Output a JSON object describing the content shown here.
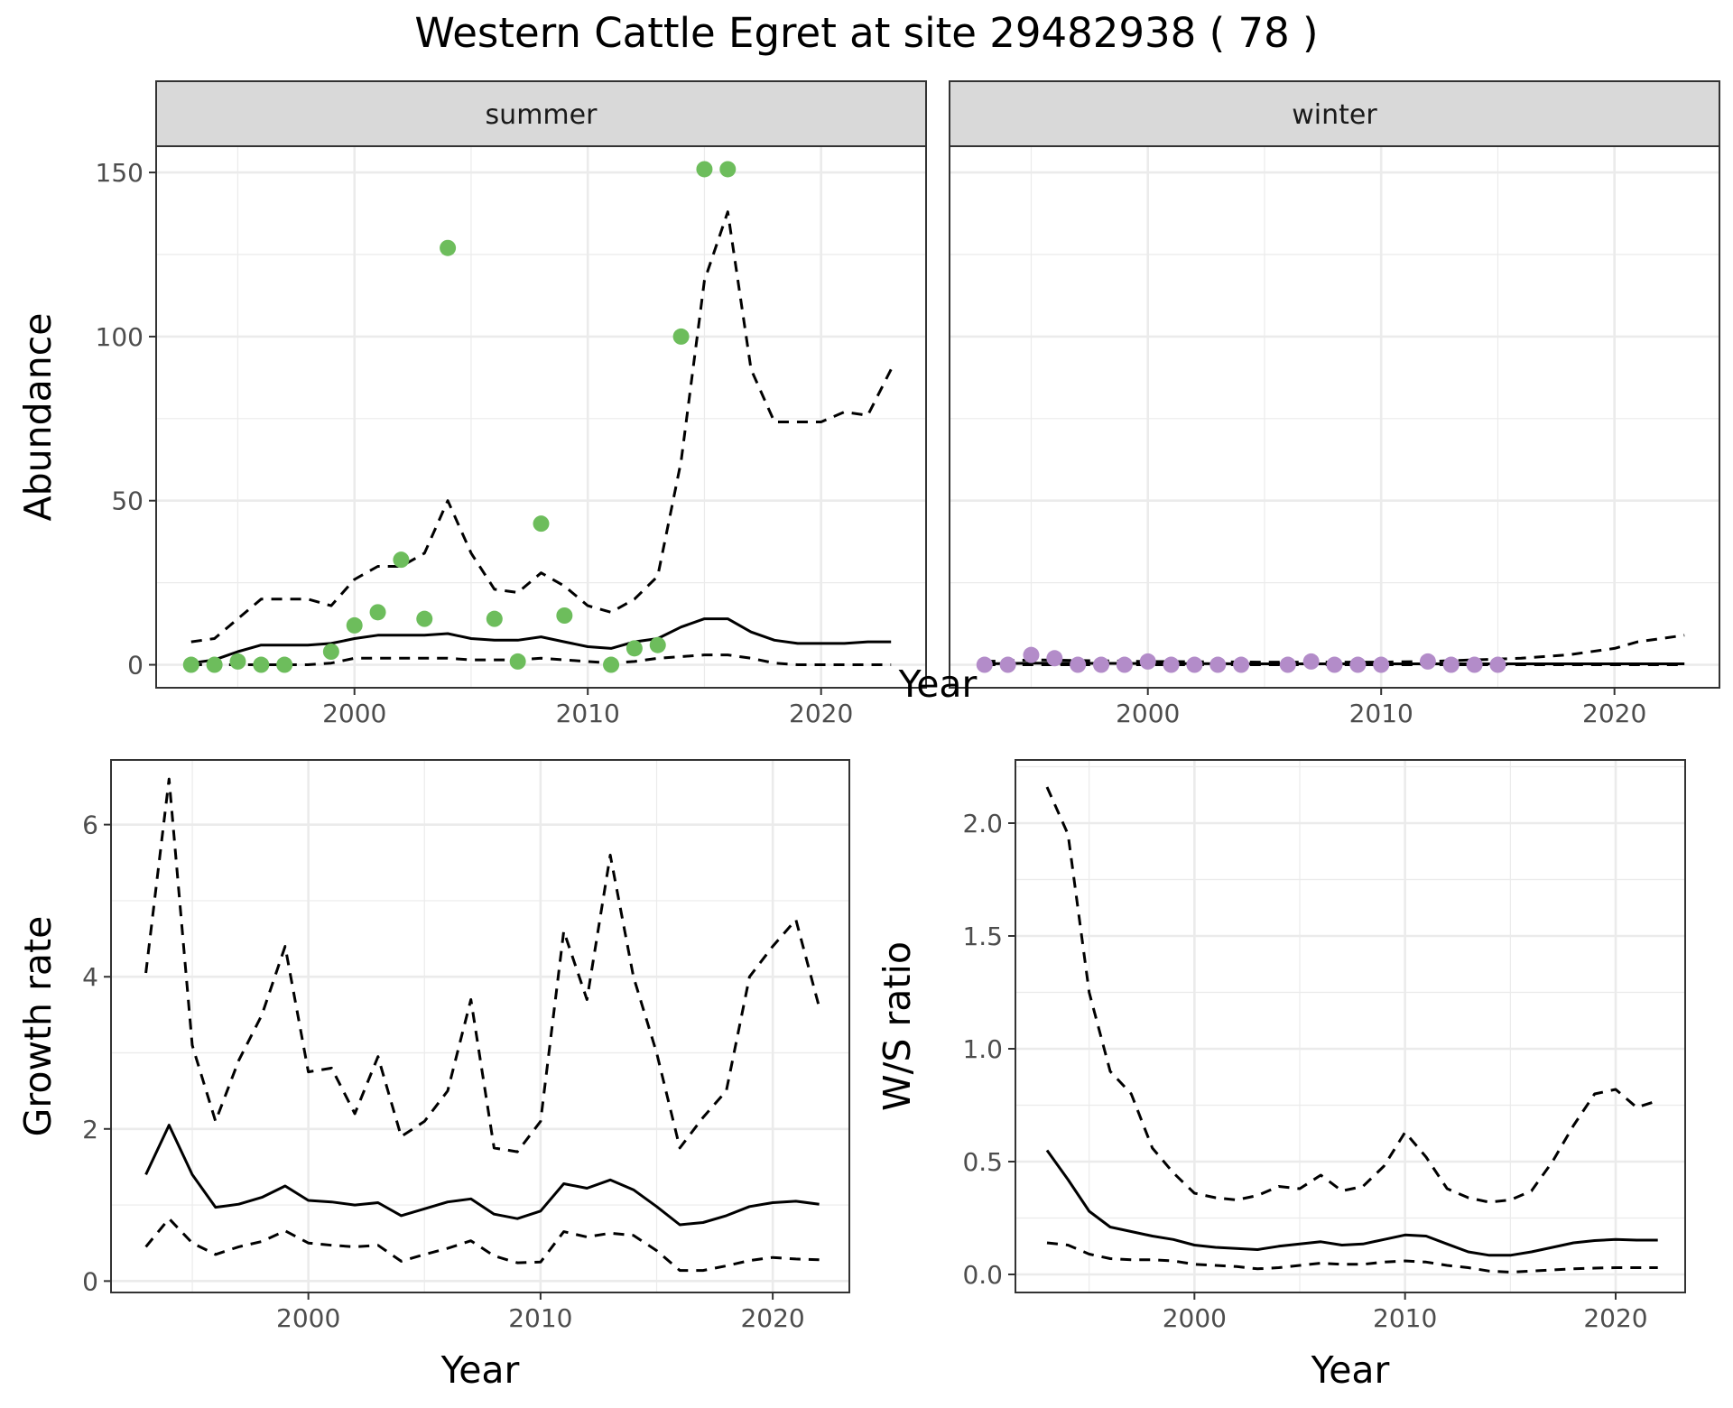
{
  "title": "Western Cattle Egret at site 29482938 ( 78 )",
  "styles": {
    "summer_point_color": "#6dbd5c",
    "winter_point_color": "#b38cc9",
    "line_color": "#000000",
    "grid_color": "#ebebeb",
    "strip_fill": "#d9d9d9",
    "panel_border": "#333333"
  },
  "chart_data": [
    {
      "id": "abundance",
      "type": "scatter+line",
      "facets": [
        "summer",
        "winter"
      ],
      "xlabel": "Year",
      "ylabel": "Abundance",
      "xlim": [
        1991.5,
        2024.5
      ],
      "ylim": [
        -7,
        158
      ],
      "xticks": [
        2000,
        2010,
        2020
      ],
      "yticks": [
        0,
        50,
        100,
        150
      ],
      "grid": true,
      "summer": {
        "points": {
          "x": [
            1993,
            1994,
            1995,
            1996,
            1997,
            1999,
            2000,
            2001,
            2002,
            2003,
            2004,
            2006,
            2007,
            2008,
            2009,
            2011,
            2012,
            2013,
            2014,
            2015,
            2016
          ],
          "y": [
            0,
            0,
            1,
            0,
            0,
            4,
            12,
            16,
            32,
            14,
            127,
            14,
            1,
            43,
            15,
            0,
            5,
            6,
            100,
            151,
            151
          ]
        },
        "mean": {
          "x": [
            1993,
            1994,
            1995,
            1996,
            1997,
            1998,
            1999,
            2000,
            2001,
            2002,
            2003,
            2004,
            2005,
            2006,
            2007,
            2008,
            2009,
            2010,
            2011,
            2012,
            2013,
            2014,
            2015,
            2016,
            2017,
            2018,
            2019,
            2020,
            2021,
            2022,
            2023
          ],
          "y": [
            0.5,
            1.5,
            4,
            6,
            6,
            6,
            6.5,
            8,
            9,
            9,
            9,
            9.5,
            8,
            7.5,
            7.5,
            8.5,
            7,
            5.5,
            5,
            7,
            8,
            11.5,
            14,
            14,
            10,
            7.5,
            6.5,
            6.5,
            6.5,
            7,
            7
          ]
        },
        "upper": {
          "x": [
            1993,
            1994,
            1995,
            1996,
            1997,
            1998,
            1999,
            2000,
            2001,
            2002,
            2003,
            2004,
            2005,
            2006,
            2007,
            2008,
            2009,
            2010,
            2011,
            2012,
            2013,
            2014,
            2015,
            2016,
            2017,
            2018,
            2019,
            2020,
            2021,
            2022,
            2023
          ],
          "y": [
            7,
            8,
            14,
            20,
            20,
            20,
            18,
            26,
            30,
            30,
            34,
            50,
            34,
            23,
            22,
            28,
            24,
            18,
            16,
            20,
            27,
            62,
            117,
            138,
            90,
            74,
            74,
            74,
            77,
            76,
            90
          ]
        },
        "lower": {
          "x": [
            1993,
            1994,
            1995,
            1996,
            1997,
            1998,
            1999,
            2000,
            2001,
            2002,
            2003,
            2004,
            2005,
            2006,
            2007,
            2008,
            2009,
            2010,
            2011,
            2012,
            2013,
            2014,
            2015,
            2016,
            2017,
            2018,
            2019,
            2020,
            2021,
            2022,
            2023
          ],
          "y": [
            0,
            0,
            0,
            0,
            0,
            0,
            0.5,
            2,
            2,
            2,
            2,
            2,
            1.5,
            1.5,
            1.5,
            2,
            1.5,
            1,
            0.5,
            1,
            2,
            2.5,
            3,
            3,
            2,
            0.5,
            0,
            0,
            0,
            0,
            0
          ]
        }
      },
      "winter": {
        "points": {
          "x": [
            1993,
            1994,
            1995,
            1996,
            1997,
            1998,
            1999,
            2000,
            2001,
            2002,
            2003,
            2004,
            2006,
            2007,
            2008,
            2009,
            2010,
            2012,
            2013,
            2014,
            2015
          ],
          "y": [
            0,
            0,
            3,
            2,
            0,
            0,
            0,
            1,
            0,
            0,
            0,
            0,
            0,
            1,
            0,
            0,
            0,
            1,
            0,
            0,
            0
          ]
        },
        "mean": {
          "x": [
            1993,
            1995,
            2000,
            2005,
            2010,
            2015,
            2020,
            2023
          ],
          "y": [
            0.3,
            0.5,
            0.4,
            0.3,
            0.3,
            0.3,
            0.3,
            0.3
          ]
        },
        "upper": {
          "x": [
            1993,
            1995,
            2000,
            2005,
            2010,
            2012,
            2014,
            2016,
            2018,
            2020,
            2021,
            2022,
            2023
          ],
          "y": [
            1,
            1.5,
            1,
            0.8,
            0.8,
            1,
            1.5,
            2,
            3,
            5,
            7,
            8,
            9
          ]
        },
        "lower": {
          "x": [
            1993,
            2000,
            2010,
            2023
          ],
          "y": [
            0,
            0,
            0,
            0
          ]
        }
      }
    },
    {
      "id": "growth",
      "type": "line",
      "xlabel": "Year",
      "ylabel": "Growth rate",
      "xlim": [
        1991.5,
        2023.3
      ],
      "ylim": [
        -0.15,
        6.85
      ],
      "xticks": [
        2000,
        2010,
        2020
      ],
      "yticks": [
        0,
        2,
        4,
        6
      ],
      "grid": true,
      "mean": {
        "x": [
          1993,
          1994,
          1995,
          1996,
          1997,
          1998,
          1999,
          2000,
          2001,
          2002,
          2003,
          2004,
          2005,
          2006,
          2007,
          2008,
          2009,
          2010,
          2011,
          2012,
          2013,
          2014,
          2015,
          2016,
          2017,
          2018,
          2019,
          2020,
          2021,
          2022
        ],
        "y": [
          1.4,
          2.05,
          1.4,
          0.97,
          1.01,
          1.1,
          1.25,
          1.06,
          1.04,
          1.0,
          1.03,
          0.86,
          0.95,
          1.04,
          1.08,
          0.88,
          0.82,
          0.92,
          1.28,
          1.22,
          1.33,
          1.2,
          0.98,
          0.74,
          0.77,
          0.86,
          0.98,
          1.03,
          1.05,
          1.01
        ]
      },
      "upper": {
        "x": [
          1993,
          1994,
          1995,
          1996,
          1997,
          1998,
          1999,
          2000,
          2001,
          2002,
          2003,
          2004,
          2005,
          2006,
          2007,
          2008,
          2009,
          2010,
          2011,
          2012,
          2013,
          2014,
          2015,
          2016,
          2017,
          2018,
          2019,
          2020,
          2021,
          2022
        ],
        "y": [
          4.05,
          6.6,
          3.1,
          2.1,
          2.9,
          3.5,
          4.4,
          2.75,
          2.8,
          2.2,
          2.95,
          1.9,
          2.1,
          2.5,
          3.7,
          1.75,
          1.7,
          2.1,
          4.6,
          3.7,
          5.6,
          4.0,
          3.0,
          1.75,
          2.15,
          2.5,
          4.0,
          4.4,
          4.75,
          3.6
        ]
      },
      "lower": {
        "x": [
          1993,
          1994,
          1995,
          1996,
          1997,
          1998,
          1999,
          2000,
          2001,
          2002,
          2003,
          2004,
          2005,
          2006,
          2007,
          2008,
          2009,
          2010,
          2011,
          2012,
          2013,
          2014,
          2015,
          2016,
          2017,
          2018,
          2019,
          2020,
          2021,
          2022
        ],
        "y": [
          0.45,
          0.82,
          0.5,
          0.35,
          0.45,
          0.52,
          0.66,
          0.5,
          0.47,
          0.45,
          0.47,
          0.26,
          0.35,
          0.43,
          0.53,
          0.33,
          0.24,
          0.25,
          0.65,
          0.58,
          0.63,
          0.6,
          0.4,
          0.14,
          0.14,
          0.2,
          0.27,
          0.31,
          0.29,
          0.28
        ]
      }
    },
    {
      "id": "ratio",
      "type": "line",
      "xlabel": "Year",
      "ylabel": "W/S ratio",
      "xlim": [
        1991.5,
        2023.3
      ],
      "ylim": [
        -0.08,
        2.28
      ],
      "xticks": [
        2000,
        2010,
        2020
      ],
      "yticks": [
        0.0,
        0.5,
        1.0,
        1.5,
        2.0
      ],
      "ytick_labels": [
        "0.0",
        "0.5",
        "1.0",
        "1.5",
        "2.0"
      ],
      "grid": true,
      "mean": {
        "x": [
          1993,
          1994,
          1995,
          1996,
          1997,
          1998,
          1999,
          2000,
          2001,
          2002,
          2003,
          2004,
          2005,
          2006,
          2007,
          2008,
          2009,
          2010,
          2011,
          2012,
          2013,
          2014,
          2015,
          2016,
          2017,
          2018,
          2019,
          2020,
          2021,
          2022
        ],
        "y": [
          0.55,
          0.42,
          0.28,
          0.21,
          0.19,
          0.17,
          0.155,
          0.13,
          0.12,
          0.115,
          0.11,
          0.125,
          0.135,
          0.145,
          0.13,
          0.135,
          0.155,
          0.175,
          0.17,
          0.135,
          0.1,
          0.085,
          0.085,
          0.1,
          0.12,
          0.14,
          0.15,
          0.155,
          0.152,
          0.152
        ]
      },
      "upper": {
        "x": [
          1993,
          1994,
          1995,
          1996,
          1997,
          1998,
          1999,
          2000,
          2001,
          2002,
          2003,
          2004,
          2005,
          2006,
          2007,
          2008,
          2009,
          2010,
          2011,
          2012,
          2013,
          2014,
          2015,
          2016,
          2017,
          2018,
          2019,
          2020,
          2021,
          2022
        ],
        "y": [
          2.16,
          1.95,
          1.25,
          0.9,
          0.8,
          0.56,
          0.45,
          0.36,
          0.34,
          0.33,
          0.35,
          0.39,
          0.38,
          0.44,
          0.37,
          0.39,
          0.48,
          0.63,
          0.52,
          0.38,
          0.34,
          0.32,
          0.33,
          0.37,
          0.5,
          0.66,
          0.8,
          0.82,
          0.74,
          0.77
        ]
      },
      "lower": {
        "x": [
          1993,
          1994,
          1995,
          1996,
          1997,
          1998,
          1999,
          2000,
          2001,
          2002,
          2003,
          2004,
          2005,
          2006,
          2007,
          2008,
          2009,
          2010,
          2011,
          2012,
          2013,
          2014,
          2015,
          2016,
          2017,
          2018,
          2019,
          2020,
          2021,
          2022
        ],
        "y": [
          0.14,
          0.13,
          0.09,
          0.07,
          0.065,
          0.065,
          0.06,
          0.045,
          0.04,
          0.035,
          0.025,
          0.03,
          0.04,
          0.05,
          0.045,
          0.045,
          0.055,
          0.06,
          0.055,
          0.04,
          0.03,
          0.015,
          0.01,
          0.015,
          0.02,
          0.025,
          0.028,
          0.03,
          0.03,
          0.03
        ]
      }
    }
  ]
}
